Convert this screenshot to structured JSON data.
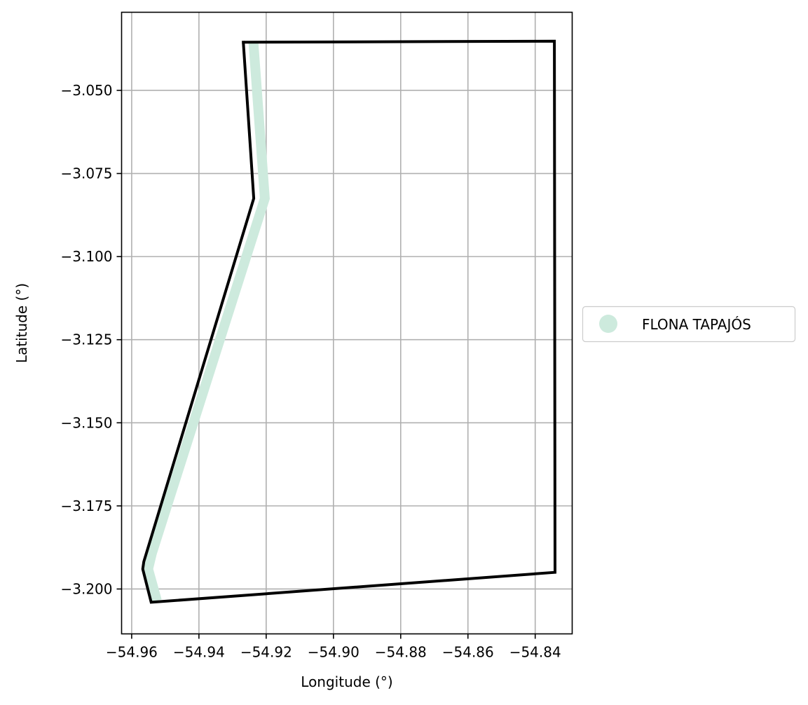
{
  "chart_data": {
    "type": "map",
    "xlabel": "Longitude (°)",
    "ylabel": "Latitude (°)",
    "xlim": [
      -54.963,
      -54.829
    ],
    "ylim": [
      -3.2135,
      -3.0265
    ],
    "grid": true,
    "x_ticks": [
      -54.96,
      -54.94,
      -54.92,
      -54.9,
      -54.88,
      -54.86,
      -54.84
    ],
    "x_tick_labels": [
      "−54.96",
      "−54.94",
      "−54.92",
      "−54.90",
      "−54.88",
      "−54.86",
      "−54.84"
    ],
    "y_ticks": [
      -3.05,
      -3.075,
      -3.1,
      -3.125,
      -3.15,
      -3.175,
      -3.2
    ],
    "y_tick_labels": [
      "−3.050",
      "−3.075",
      "−3.100",
      "−3.125",
      "−3.150",
      "−3.175",
      "−3.200"
    ],
    "legend": {
      "placement": "right",
      "entries": [
        {
          "label": "FLONA TAPAJÓS",
          "color": "#cdeadd",
          "marker": "circle"
        }
      ]
    },
    "series": [
      {
        "name": "FLONA TAPAJÓS",
        "kind": "highlight-line",
        "color": "#cdeadd",
        "points": [
          [
            -54.9238,
            -3.0355
          ],
          [
            -54.9204,
            -3.0825
          ],
          [
            -54.954,
            -3.1893
          ],
          [
            -54.9551,
            -3.194
          ],
          [
            -54.9525,
            -3.2035
          ]
        ]
      },
      {
        "name": "boundary",
        "kind": "outline",
        "color": "#000000",
        "points": [
          [
            -54.9268,
            -3.0355
          ],
          [
            -54.8343,
            -3.0352
          ],
          [
            -54.8341,
            -3.195
          ],
          [
            -54.9542,
            -3.204
          ],
          [
            -54.9567,
            -3.194
          ],
          [
            -54.9564,
            -3.1918
          ],
          [
            -54.9237,
            -3.0825
          ],
          [
            -54.9268,
            -3.0355
          ]
        ]
      }
    ]
  }
}
